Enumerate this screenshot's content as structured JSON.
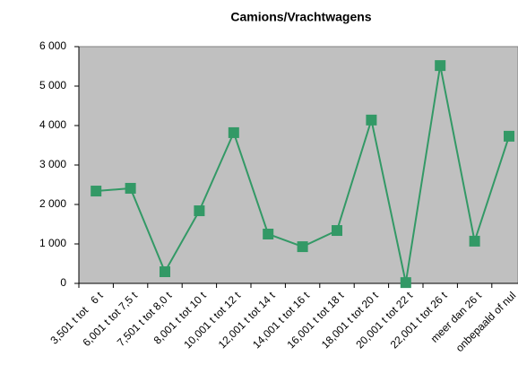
{
  "chart_data": {
    "type": "line",
    "title": "Camions/Vrachtwagens",
    "categories": [
      "3,501 t tot   6 t",
      "6,001 t tot 7,5 t",
      "7,501 t tot 8,0 t",
      "8,001 t tot 10 t",
      "10,001 t tot 12 t",
      "12,001 t tot 14 t",
      "14,001 t tot 16 t",
      "16,001 t tot 18 t",
      "18,001 t tot 20 t",
      "20,001 t tot 22 t",
      "22,001 t tot 26 t",
      "meer dan 26 t",
      "onbepaald of nul"
    ],
    "series": [
      {
        "name": "Camions/Vrachtwagens",
        "color": "#339966",
        "values": [
          2340,
          2410,
          295,
          1840,
          3820,
          1250,
          930,
          1340,
          4140,
          20,
          5520,
          1070,
          3730
        ]
      }
    ],
    "ylim": [
      0,
      6000
    ],
    "yticks": [
      {
        "value": 0,
        "label": "0"
      },
      {
        "value": 1000,
        "label": "1 000"
      },
      {
        "value": 2000,
        "label": "2 000"
      },
      {
        "value": 3000,
        "label": "3 000"
      },
      {
        "value": 4000,
        "label": "4 000"
      },
      {
        "value": 5000,
        "label": "5 000"
      },
      {
        "value": 6000,
        "label": "6 000"
      }
    ],
    "plot_background": "#c0c0c0"
  }
}
